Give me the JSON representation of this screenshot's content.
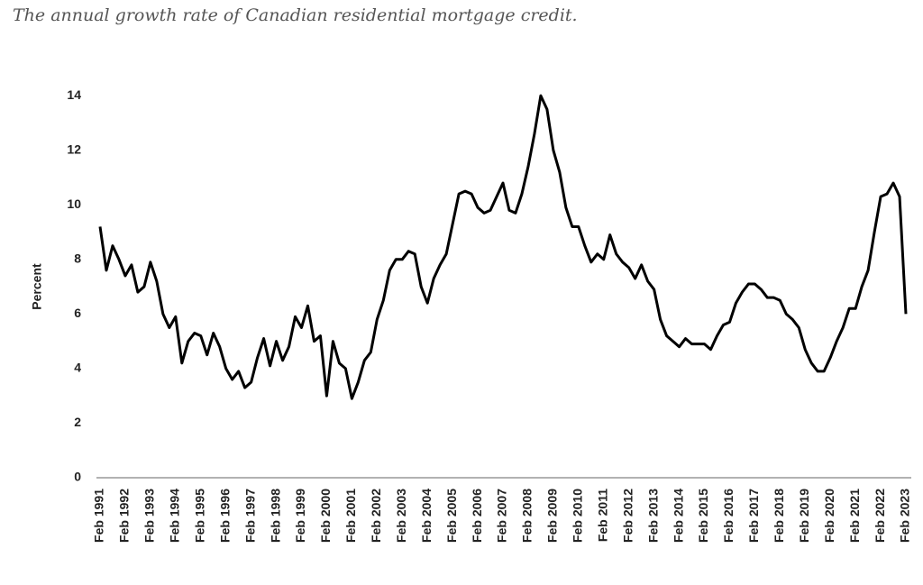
{
  "chart_data": {
    "type": "line",
    "title": "The annual growth rate of Canadian residential mortgage credit.",
    "ylabel": "Percent",
    "categories": [
      "Feb 1991",
      null,
      null,
      null,
      "Feb 1992",
      null,
      null,
      null,
      "Feb 1993",
      null,
      null,
      null,
      "Feb 1994",
      null,
      null,
      null,
      "Feb 1995",
      null,
      null,
      null,
      "Feb 1996",
      null,
      null,
      null,
      "Feb 1997",
      null,
      null,
      null,
      "Feb 1998",
      null,
      null,
      null,
      "Feb 1999",
      null,
      null,
      null,
      "Feb 2000",
      null,
      null,
      null,
      "Feb 2001",
      null,
      null,
      null,
      "Feb 2002",
      null,
      null,
      null,
      "Feb 2003",
      null,
      null,
      null,
      "Feb 2004",
      null,
      null,
      null,
      "Feb 2005",
      null,
      null,
      null,
      "Feb 2006",
      null,
      null,
      null,
      "Feb 2007",
      null,
      null,
      null,
      "Feb 2008",
      null,
      null,
      null,
      "Feb 2009",
      null,
      null,
      null,
      "Feb 2010",
      null,
      null,
      null,
      "Feb 2011",
      null,
      null,
      null,
      "Feb 2012",
      null,
      null,
      null,
      "Feb 2013",
      null,
      null,
      null,
      "Feb 2014",
      null,
      null,
      null,
      "Feb 2015",
      null,
      null,
      null,
      "Feb 2016",
      null,
      null,
      null,
      "Feb 2017",
      null,
      null,
      null,
      "Feb 2018",
      null,
      null,
      null,
      "Feb 2019",
      null,
      null,
      null,
      "Feb 2020",
      null,
      null,
      null,
      "Feb 2021",
      null,
      null,
      null,
      "Feb 2022",
      null,
      null,
      null,
      "Feb 2023"
    ],
    "series": [
      {
        "name": "Percent",
        "color": "#000000",
        "values": [
          9.2,
          7.6,
          8.5,
          8.0,
          7.4,
          7.8,
          6.8,
          7.0,
          7.9,
          7.2,
          6.0,
          5.5,
          5.9,
          4.2,
          5.0,
          5.3,
          5.2,
          4.5,
          5.3,
          4.8,
          4.0,
          3.6,
          3.9,
          3.3,
          3.5,
          4.4,
          5.1,
          4.1,
          5.0,
          4.3,
          4.8,
          5.9,
          5.5,
          6.3,
          5.0,
          5.2,
          3.0,
          5.0,
          4.2,
          4.0,
          2.9,
          3.5,
          4.3,
          4.6,
          5.8,
          6.5,
          7.6,
          8.0,
          8.0,
          8.3,
          8.2,
          7.0,
          6.4,
          7.3,
          7.8,
          8.2,
          9.3,
          10.4,
          10.5,
          10.4,
          9.9,
          9.7,
          9.8,
          10.3,
          10.8,
          9.8,
          9.7,
          10.4,
          11.4,
          12.6,
          14.0,
          13.5,
          12.0,
          11.2,
          9.9,
          9.2,
          9.2,
          8.5,
          7.9,
          8.2,
          8.0,
          8.9,
          8.2,
          7.9,
          7.7,
          7.3,
          7.8,
          7.2,
          6.9,
          5.8,
          5.2,
          5.0,
          4.8,
          5.1,
          4.9,
          4.9,
          4.9,
          4.7,
          5.2,
          5.6,
          5.7,
          6.4,
          6.8,
          7.1,
          7.1,
          6.9,
          6.6,
          6.6,
          6.5,
          6.0,
          5.8,
          5.5,
          4.7,
          4.2,
          3.9,
          3.9,
          4.4,
          5.0,
          5.5,
          6.2,
          6.2,
          7.0,
          7.6,
          9.0,
          10.3,
          10.4,
          10.8,
          10.3,
          6.0
        ]
      }
    ],
    "ylim": [
      0,
      14.5
    ],
    "yticks": [
      0,
      2,
      4,
      6,
      8,
      10,
      12,
      14
    ],
    "grid": false
  }
}
